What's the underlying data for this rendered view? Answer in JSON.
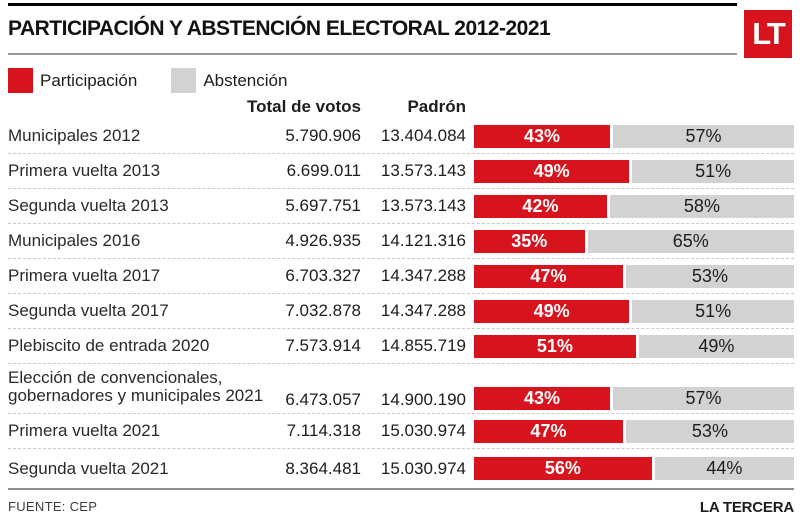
{
  "header": {
    "title": "PARTICIPACIÓN Y ABSTENCIÓN ELECTORAL 2012-2021",
    "logo": "LT"
  },
  "colors": {
    "participation": "#d7141e",
    "abstention": "#d2d2d2",
    "logo_bg": "#d7141e"
  },
  "legend": {
    "participation_label": "Participación",
    "abstention_label": "Abstención"
  },
  "columns": {
    "votes_header": "Total de votos",
    "padron_header": "Padrón"
  },
  "chart_data": {
    "type": "bar",
    "subtype": "stacked-horizontal-100pct",
    "series": [
      "Participación",
      "Abstención"
    ],
    "unit": "%",
    "legend_position": "top-left",
    "rows": [
      {
        "label": "Municipales 2012",
        "votes": "5.790.906",
        "padron": "13.404.084",
        "participation": 43,
        "abstention": 57
      },
      {
        "label": "Primera vuelta 2013",
        "votes": "6.699.011",
        "padron": "13.573.143",
        "participation": 49,
        "abstention": 51
      },
      {
        "label": "Segunda vuelta 2013",
        "votes": "5.697.751",
        "padron": "13.573.143",
        "participation": 42,
        "abstention": 58
      },
      {
        "label": "Municipales 2016",
        "votes": "4.926.935",
        "padron": "14.121.316",
        "participation": 35,
        "abstention": 65
      },
      {
        "label": "Primera vuelta 2017",
        "votes": "6.703.327",
        "padron": "14.347.288",
        "participation": 47,
        "abstention": 53
      },
      {
        "label": "Segunda vuelta 2017",
        "votes": "7.032.878",
        "padron": "14.347.288",
        "participation": 49,
        "abstention": 51
      },
      {
        "label": "Plebiscito de entrada 2020",
        "votes": "7.573.914",
        "padron": "14.855.719",
        "participation": 51,
        "abstention": 49
      },
      {
        "label": "Elección de convencionales, gobernadores y municipales 2021",
        "votes": "6.473.057",
        "padron": "14.900.190",
        "participation": 43,
        "abstention": 57
      },
      {
        "label": "Primera vuelta 2021",
        "votes": "7.114.318",
        "padron": "15.030.974",
        "participation": 47,
        "abstention": 53
      },
      {
        "label": "Segunda vuelta 2021",
        "votes": "8.364.481",
        "padron": "15.030.974",
        "participation": 56,
        "abstention": 44
      }
    ]
  },
  "footer": {
    "source": "FUENTE: CEP",
    "credit": "LA TERCERA"
  }
}
